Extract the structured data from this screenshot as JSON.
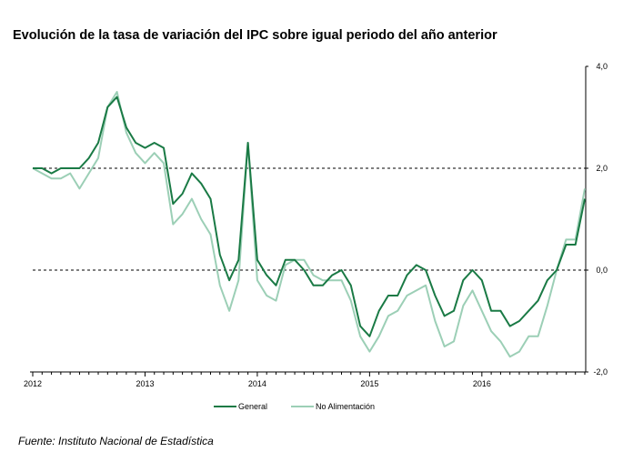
{
  "title": "Evolución de la tasa de variación del IPC sobre igual  periodo del año anterior",
  "source": "Fuente: Instituto Nacional de Estadística",
  "colors": {
    "general": "#1a7a45",
    "no_alimentacion": "#9ccfb6"
  },
  "chart_data": {
    "type": "line",
    "title": "Evolución de la tasa de variación del IPC sobre igual  periodo del año anterior",
    "xlabel": "",
    "ylabel": "",
    "ylim": [
      -2.0,
      4.0
    ],
    "yticks": [
      "4,0",
      "2,0",
      "0,0",
      "-2,0"
    ],
    "ytick_values": [
      4.0,
      2.0,
      0.0,
      -2.0
    ],
    "xtick_labels": [
      "2012",
      "2013",
      "2014",
      "2015",
      "2016"
    ],
    "reference_lines": [
      2.0,
      0.0
    ],
    "legend_position": "bottom",
    "x": [
      "2012-01",
      "2012-02",
      "2012-03",
      "2012-04",
      "2012-05",
      "2012-06",
      "2012-07",
      "2012-08",
      "2012-09",
      "2012-10",
      "2012-11",
      "2012-12",
      "2013-01",
      "2013-02",
      "2013-03",
      "2013-04",
      "2013-05",
      "2013-06",
      "2013-07",
      "2013-08",
      "2013-09",
      "2013-10",
      "2013-11",
      "2013-12",
      "2014-01",
      "2014-02",
      "2014-03",
      "2014-04",
      "2014-05",
      "2014-06",
      "2014-07",
      "2014-08",
      "2014-09",
      "2014-10",
      "2014-11",
      "2014-12",
      "2015-01",
      "2015-02",
      "2015-03",
      "2015-04",
      "2015-05",
      "2015-06",
      "2015-07",
      "2015-08",
      "2015-09",
      "2015-10",
      "2015-11",
      "2015-12",
      "2016-01",
      "2016-02",
      "2016-03",
      "2016-04",
      "2016-05",
      "2016-06",
      "2016-07",
      "2016-08",
      "2016-09",
      "2016-10",
      "2016-11",
      "2016-12"
    ],
    "series": [
      {
        "name": "General",
        "values": [
          2.0,
          2.0,
          1.9,
          2.0,
          2.0,
          2.0,
          2.2,
          2.5,
          3.2,
          3.4,
          2.8,
          2.5,
          2.4,
          2.5,
          2.4,
          1.3,
          1.5,
          1.9,
          1.7,
          1.4,
          0.3,
          -0.2,
          0.2,
          2.5,
          0.2,
          -0.1,
          -0.3,
          0.2,
          0.2,
          0.0,
          -0.3,
          -0.3,
          -0.1,
          0.0,
          -0.3,
          -1.1,
          -1.3,
          -0.8,
          -0.5,
          -0.5,
          -0.1,
          0.1,
          0.0,
          -0.5,
          -0.9,
          -0.8,
          -0.2,
          0.0,
          -0.2,
          -0.8,
          -0.8,
          -1.1,
          -1.0,
          -0.8,
          -0.6,
          -0.2,
          0.0,
          0.5,
          0.5,
          1.4
        ]
      },
      {
        "name": "No Alimentación",
        "values": [
          2.0,
          1.9,
          1.8,
          1.8,
          1.9,
          1.6,
          1.9,
          2.2,
          3.2,
          3.5,
          2.7,
          2.3,
          2.1,
          2.3,
          2.1,
          0.9,
          1.1,
          1.4,
          1.0,
          0.7,
          -0.3,
          -0.8,
          -0.2,
          2.5,
          -0.2,
          -0.5,
          -0.6,
          0.1,
          0.2,
          0.2,
          -0.1,
          -0.2,
          -0.2,
          -0.2,
          -0.6,
          -1.3,
          -1.6,
          -1.3,
          -0.9,
          -0.8,
          -0.5,
          -0.4,
          -0.3,
          -1.0,
          -1.5,
          -1.4,
          -0.7,
          -0.4,
          -0.8,
          -1.2,
          -1.4,
          -1.7,
          -1.6,
          -1.3,
          -1.3,
          -0.7,
          0.0,
          0.6,
          0.6,
          1.6
        ]
      }
    ]
  }
}
